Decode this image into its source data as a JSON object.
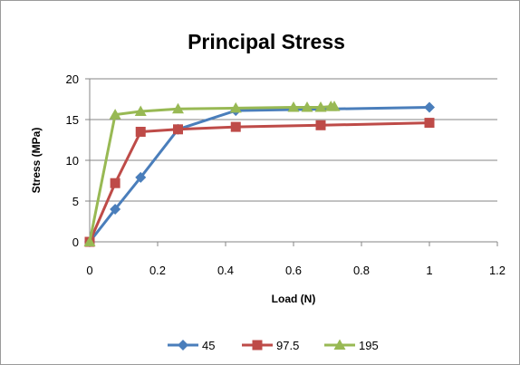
{
  "chart_data": {
    "type": "line",
    "title": "Principal Stress",
    "xlabel": "Load (N)",
    "ylabel": "Stress (MPa)",
    "xlim": [
      0,
      1.2
    ],
    "ylim": [
      0,
      20
    ],
    "xticks": [
      "0",
      "0.2",
      "0.4",
      "0.6",
      "0.8",
      "1",
      "1.2"
    ],
    "yticks": [
      "0",
      "5",
      "10",
      "15",
      "20"
    ],
    "grid": "horizontal",
    "legend_position": "bottom",
    "series": [
      {
        "name": "45",
        "color": "#4a7ebb",
        "marker": "diamond",
        "x": [
          0,
          0.075,
          0.15,
          0.26,
          0.43,
          1.0
        ],
        "y": [
          0,
          4.0,
          7.9,
          13.8,
          16.1,
          16.5
        ]
      },
      {
        "name": "97.5",
        "color": "#be4b48",
        "marker": "square",
        "x": [
          0,
          0.075,
          0.15,
          0.26,
          0.43,
          0.68,
          1.0
        ],
        "y": [
          0,
          7.2,
          13.5,
          13.8,
          14.1,
          14.3,
          14.6
        ]
      },
      {
        "name": "195",
        "color": "#98b954",
        "marker": "triangle",
        "x": [
          0,
          0.075,
          0.15,
          0.26,
          0.43,
          0.6,
          0.64,
          0.68,
          0.71,
          0.72
        ],
        "y": [
          0,
          15.6,
          16.0,
          16.3,
          16.4,
          16.5,
          16.5,
          16.5,
          16.6,
          16.6
        ]
      }
    ]
  }
}
